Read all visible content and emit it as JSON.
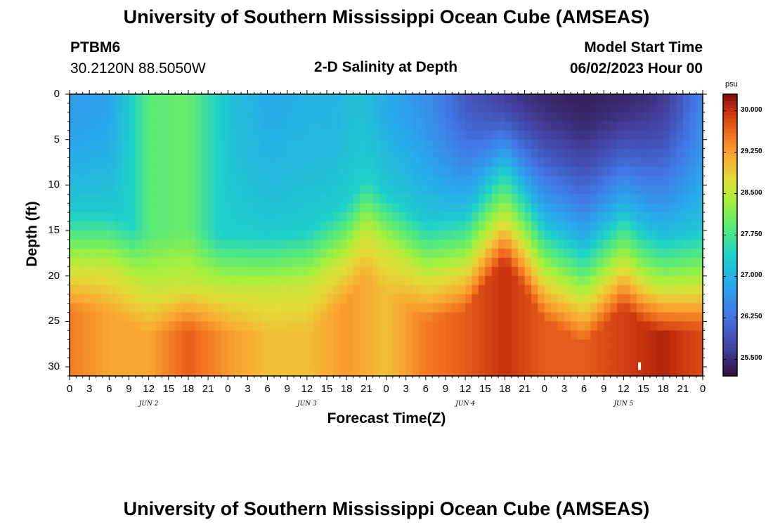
{
  "header": {
    "title": "University of Southern Mississippi Ocean Cube (AMSEAS)",
    "station_id": "PTBM6",
    "coords": "30.2120N  88.5050W",
    "plot_title": "2-D Salinity at Depth",
    "model_start_label": "Model Start Time",
    "model_start_value": "06/02/2023 Hour 00"
  },
  "footer": {
    "title": "University of Southern Mississippi Ocean Cube (AMSEAS)"
  },
  "chart_data": {
    "type": "heatmap",
    "title": "2-D Salinity at Depth",
    "xlabel": "Forecast Time(Z)",
    "ylabel": "Depth (ft)",
    "x_ticks": [
      "0",
      "3",
      "6",
      "9",
      "12",
      "15",
      "18",
      "21",
      "0",
      "3",
      "6",
      "9",
      "12",
      "15",
      "18",
      "21",
      "0",
      "3",
      "6",
      "9",
      "12",
      "15",
      "18",
      "21",
      "0",
      "3",
      "6",
      "9",
      "12",
      "15",
      "18",
      "21",
      "0"
    ],
    "x_range_hours": [
      0,
      96
    ],
    "day_labels": [
      "JUN 2",
      "JUN 3",
      "JUN 4",
      "JUN 5"
    ],
    "y_ticks": [
      0,
      5,
      10,
      15,
      20,
      25,
      30
    ],
    "y_range_ft": [
      0,
      31
    ],
    "y_inverted": true,
    "colorbar": {
      "unit": "psu",
      "ticks": [
        "30.000",
        "29.250",
        "28.500",
        "27.750",
        "27.000",
        "26.250",
        "25.500"
      ],
      "range": [
        25.2,
        30.3
      ]
    },
    "field_model": {
      "description": "Estimated salinity (psu) vs forecast hour and depth (ft), read off the color scale",
      "surface_profile": [
        [
          0,
          26.7
        ],
        [
          6,
          26.8
        ],
        [
          9,
          27.3
        ],
        [
          12,
          27.9
        ],
        [
          18,
          28.0
        ],
        [
          21,
          27.6
        ],
        [
          24,
          27.2
        ],
        [
          30,
          26.9
        ],
        [
          36,
          27.0
        ],
        [
          40,
          27.0
        ],
        [
          44,
          27.2
        ],
        [
          48,
          26.9
        ],
        [
          54,
          26.6
        ],
        [
          60,
          26.0
        ],
        [
          66,
          25.7
        ],
        [
          72,
          25.5
        ],
        [
          78,
          25.3
        ],
        [
          84,
          25.5
        ],
        [
          90,
          25.7
        ],
        [
          94,
          26.2
        ],
        [
          96,
          26.5
        ]
      ],
      "halocline_depth_ft": [
        [
          0,
          19
        ],
        [
          6,
          19
        ],
        [
          12,
          21.5
        ],
        [
          18,
          21
        ],
        [
          24,
          21.5
        ],
        [
          30,
          21.5
        ],
        [
          36,
          21
        ],
        [
          42,
          18
        ],
        [
          45,
          15
        ],
        [
          48,
          17
        ],
        [
          54,
          20
        ],
        [
          60,
          19
        ],
        [
          64,
          15
        ],
        [
          66,
          13.5
        ],
        [
          69,
          16.5
        ],
        [
          72,
          20
        ],
        [
          78,
          22.5
        ],
        [
          84,
          18.5
        ],
        [
          87,
          20.5
        ],
        [
          90,
          21.5
        ],
        [
          96,
          21
        ]
      ],
      "bottom_profile": [
        [
          0,
          29.5
        ],
        [
          6,
          29.2
        ],
        [
          12,
          29.2
        ],
        [
          18,
          29.7
        ],
        [
          24,
          29.3
        ],
        [
          30,
          29.0
        ],
        [
          36,
          29.0
        ],
        [
          42,
          29.3
        ],
        [
          48,
          29.0
        ],
        [
          54,
          29.5
        ],
        [
          60,
          29.7
        ],
        [
          66,
          30.0
        ],
        [
          72,
          29.7
        ],
        [
          78,
          29.7
        ],
        [
          84,
          29.9
        ],
        [
          90,
          30.1
        ],
        [
          96,
          29.8
        ]
      ],
      "dark_core": {
        "start_hour": 66,
        "end_hour": 94,
        "max_depth_ft": 10,
        "value_psu": 25.4
      }
    }
  }
}
